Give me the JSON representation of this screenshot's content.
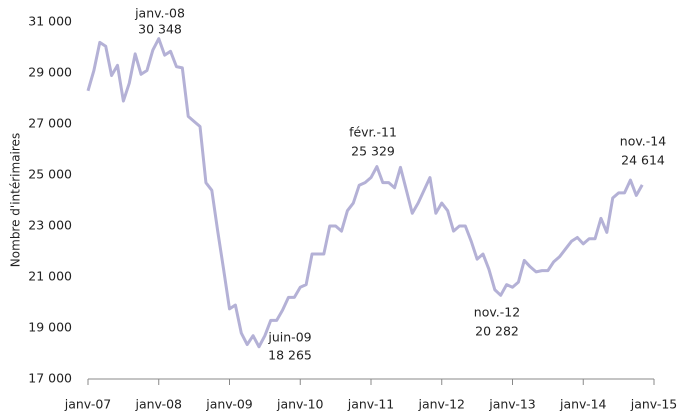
{
  "chart_data": {
    "type": "line",
    "ylabel": "Nombre d'intérimaires",
    "x": [
      "2007-01",
      "2007-02",
      "2007-03",
      "2007-04",
      "2007-05",
      "2007-06",
      "2007-07",
      "2007-08",
      "2007-09",
      "2007-10",
      "2007-11",
      "2007-12",
      "2008-01",
      "2008-02",
      "2008-03",
      "2008-04",
      "2008-05",
      "2008-06",
      "2008-07",
      "2008-08",
      "2008-09",
      "2008-10",
      "2008-11",
      "2008-12",
      "2009-01",
      "2009-02",
      "2009-03",
      "2009-04",
      "2009-05",
      "2009-06",
      "2009-07",
      "2009-08",
      "2009-09",
      "2009-10",
      "2009-11",
      "2009-12",
      "2010-01",
      "2010-02",
      "2010-03",
      "2010-04",
      "2010-05",
      "2010-06",
      "2010-07",
      "2010-08",
      "2010-09",
      "2010-10",
      "2010-11",
      "2010-12",
      "2011-01",
      "2011-02",
      "2011-03",
      "2011-04",
      "2011-05",
      "2011-06",
      "2011-07",
      "2011-08",
      "2011-09",
      "2011-10",
      "2011-11",
      "2011-12",
      "2012-01",
      "2012-02",
      "2012-03",
      "2012-04",
      "2012-05",
      "2012-06",
      "2012-07",
      "2012-08",
      "2012-09",
      "2012-10",
      "2012-11",
      "2012-12",
      "2013-01",
      "2013-02",
      "2013-03",
      "2013-04",
      "2013-05",
      "2013-06",
      "2013-07",
      "2013-08",
      "2013-09",
      "2013-10",
      "2013-11",
      "2013-12",
      "2014-01",
      "2014-02",
      "2014-03",
      "2014-04",
      "2014-05",
      "2014-06",
      "2014-07",
      "2014-08",
      "2014-09",
      "2014-10",
      "2014-11"
    ],
    "series": [
      {
        "name": "Nombre d'intérimaires",
        "color": "#b4b1d6",
        "values": [
          28300,
          29100,
          30200,
          30050,
          28900,
          29300,
          27900,
          28600,
          29750,
          28950,
          29100,
          29900,
          30348,
          29700,
          29850,
          29250,
          29200,
          27300,
          27100,
          26900,
          24700,
          24400,
          22800,
          21300,
          19750,
          19900,
          18800,
          18350,
          18700,
          18265,
          18700,
          19300,
          19300,
          19700,
          20200,
          20200,
          20600,
          20700,
          21900,
          21900,
          21900,
          23000,
          23000,
          22800,
          23600,
          23900,
          24600,
          24700,
          24900,
          25329,
          24700,
          24700,
          24500,
          25300,
          24400,
          23500,
          23900,
          24400,
          24900,
          23500,
          23900,
          23600,
          22800,
          23000,
          23000,
          22400,
          21700,
          21900,
          21300,
          20500,
          20282,
          20700,
          20600,
          20800,
          21650,
          21400,
          21200,
          21250,
          21250,
          21600,
          21800,
          22100,
          22400,
          22550,
          22300,
          22500,
          22500,
          23300,
          22750,
          24100,
          24300,
          24300,
          24800,
          24200,
          24614
        ]
      }
    ],
    "xlim": [
      "2007-01",
      "2015-01"
    ],
    "xticks": [
      {
        "value": "2007-01",
        "label": "janv-07"
      },
      {
        "value": "2008-01",
        "label": "janv-08"
      },
      {
        "value": "2009-01",
        "label": "janv-09"
      },
      {
        "value": "2010-01",
        "label": "janv-10"
      },
      {
        "value": "2011-01",
        "label": "janv-11"
      },
      {
        "value": "2012-01",
        "label": "janv-12"
      },
      {
        "value": "2013-01",
        "label": "janv-13"
      },
      {
        "value": "2014-01",
        "label": "janv-14"
      },
      {
        "value": "2015-01",
        "label": "janv-15"
      }
    ],
    "ylim": [
      17000,
      31000
    ],
    "yticks": [
      {
        "value": 17000,
        "label": "17 000"
      },
      {
        "value": 19000,
        "label": "19 000"
      },
      {
        "value": 21000,
        "label": "21 000"
      },
      {
        "value": 23000,
        "label": "23 000"
      },
      {
        "value": 25000,
        "label": "25 000"
      },
      {
        "value": 27000,
        "label": "27 000"
      },
      {
        "value": 29000,
        "label": "29 000"
      },
      {
        "value": 31000,
        "label": "31 000"
      }
    ],
    "annotations": [
      {
        "date": "janv.-08",
        "label": "30 348"
      },
      {
        "date": "juin-09",
        "label": "18 265"
      },
      {
        "date": "févr.-11",
        "label": "25 329"
      },
      {
        "date": "nov.-12",
        "label": "20 282"
      },
      {
        "date": "nov.-14",
        "label": "24 614"
      }
    ],
    "grid": false
  }
}
